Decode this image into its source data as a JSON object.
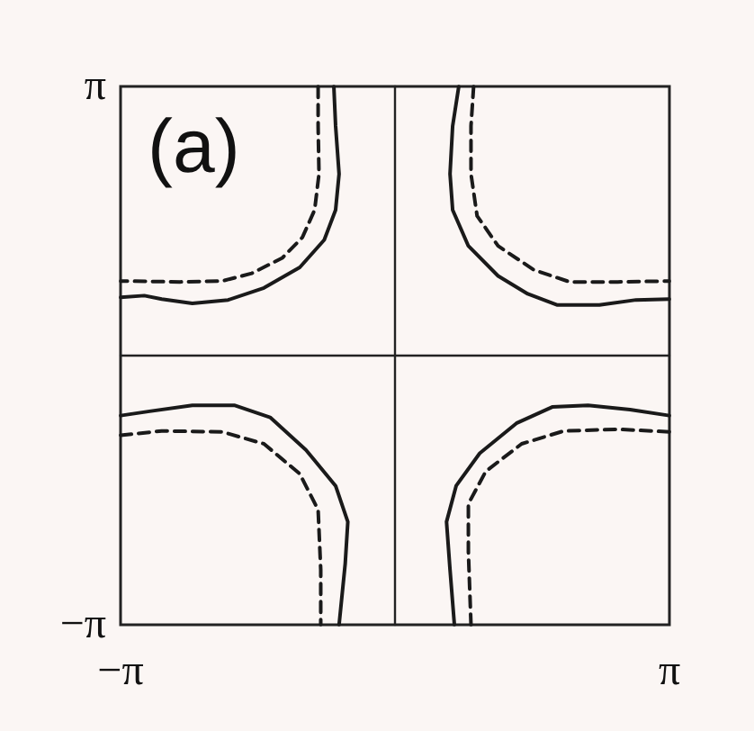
{
  "chart_data": {
    "type": "line",
    "annotations": [
      "(a)"
    ],
    "xlim": [
      -3.1416,
      3.1416
    ],
    "ylim": [
      -3.1416,
      3.1416
    ],
    "xticks": [
      {
        "value": -3.1416,
        "label": "−π"
      },
      {
        "value": 3.1416,
        "label": "π"
      }
    ],
    "yticks": [
      {
        "value": -3.1416,
        "label": "−π"
      },
      {
        "value": 3.1416,
        "label": "π"
      }
    ],
    "grid": false,
    "marker": "none",
    "series": [
      {
        "color": "#1a1a1a",
        "line_style": "solid",
        "x": [
          -0.7,
          -0.68,
          -0.64,
          -0.68,
          -0.81,
          -1.09,
          -1.5,
          -1.91,
          -2.32,
          -2.67,
          -2.87,
          -3.14
        ],
        "values": [
          3.14,
          2.68,
          2.12,
          1.7,
          1.35,
          1.03,
          0.79,
          0.65,
          0.61,
          0.66,
          0.7,
          0.68
        ]
      },
      {
        "color": "#1a1a1a",
        "line_style": "dashed",
        "x": [
          -0.88,
          -0.88,
          -0.87,
          -0.92,
          -1.06,
          -1.29,
          -1.64,
          -1.98,
          -2.46,
          -3.08,
          -3.14
        ],
        "values": [
          3.14,
          2.68,
          2.12,
          1.7,
          1.38,
          1.14,
          0.96,
          0.87,
          0.86,
          0.87,
          0.87
        ]
      },
      {
        "color": "#1a1a1a",
        "line_style": "solid",
        "x": [
          0.73,
          0.66,
          0.63,
          0.66,
          0.84,
          1.18,
          1.52,
          1.86,
          2.34,
          2.76,
          3.14
        ],
        "values": [
          3.14,
          2.68,
          2.12,
          1.7,
          1.28,
          0.93,
          0.72,
          0.59,
          0.59,
          0.65,
          0.66
        ]
      },
      {
        "color": "#1a1a1a",
        "line_style": "dashed",
        "x": [
          0.9,
          0.87,
          0.87,
          0.94,
          1.18,
          1.59,
          2.0,
          2.55,
          3.14
        ],
        "values": [
          3.14,
          2.68,
          2.12,
          1.63,
          1.28,
          1.0,
          0.86,
          0.86,
          0.87
        ]
      },
      {
        "color": "#1a1a1a",
        "line_style": "solid",
        "x": [
          -3.14,
          -2.81,
          -2.32,
          -1.84,
          -1.43,
          -1.02,
          -0.68,
          -0.54,
          -0.57,
          -0.64
        ],
        "values": [
          -0.7,
          -0.65,
          -0.58,
          -0.58,
          -0.72,
          -1.1,
          -1.52,
          -1.94,
          -2.43,
          -3.14
        ]
      },
      {
        "color": "#1a1a1a",
        "line_style": "dashed",
        "x": [
          -3.14,
          -2.67,
          -1.98,
          -1.5,
          -1.09,
          -0.88,
          -0.85,
          -0.85
        ],
        "values": [
          -0.93,
          -0.88,
          -0.89,
          -1.03,
          -1.38,
          -1.8,
          -2.5,
          -3.14
        ]
      },
      {
        "color": "#1a1a1a",
        "line_style": "solid",
        "x": [
          3.14,
          2.69,
          2.21,
          1.8,
          1.39,
          0.97,
          0.7,
          0.59,
          0.63,
          0.68
        ],
        "values": [
          -0.7,
          -0.63,
          -0.58,
          -0.6,
          -0.79,
          -1.14,
          -1.52,
          -1.94,
          -2.5,
          -3.14
        ]
      },
      {
        "color": "#1a1a1a",
        "line_style": "dashed",
        "x": [
          3.14,
          2.55,
          1.93,
          1.45,
          1.04,
          0.84,
          0.84,
          0.87
        ],
        "values": [
          -0.89,
          -0.86,
          -0.88,
          -1.03,
          -1.35,
          -1.73,
          -2.29,
          -3.14
        ]
      }
    ]
  }
}
